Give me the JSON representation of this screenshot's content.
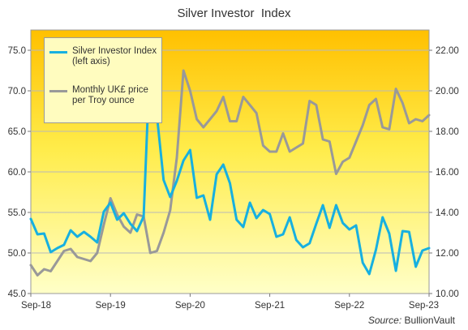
{
  "chart_data": {
    "type": "line",
    "title": "Silver Investor  Index",
    "source_label": "Source:",
    "source_value": "BullionVault",
    "left_axis": {
      "range": [
        45,
        77.5
      ],
      "ticks": [
        "45.0",
        "50.0",
        "55.0",
        "60.0",
        "65.0",
        "70.0",
        "75.0"
      ]
    },
    "right_axis": {
      "range": [
        10,
        23
      ],
      "ticks": [
        "10.00",
        "12.00",
        "14.00",
        "16.00",
        "18.00",
        "20.00",
        "22.00"
      ]
    },
    "x_tick_labels": [
      "Sep-18",
      "Sep-19",
      "Sep-20",
      "Sep-21",
      "Sep-22",
      "Sep-23"
    ],
    "x_range": [
      "Sep-18",
      "Sep-23"
    ],
    "grid": "horizontal",
    "legend_position": "top-left",
    "background": {
      "top": "#ffc000",
      "bottom": "#ffffc8"
    },
    "series": [
      {
        "name": "Silver Investor Index (left axis)",
        "axis": "left",
        "color": "#17b0e0",
        "values": [
          54.2,
          52.3,
          52.4,
          50.1,
          50.6,
          51.0,
          52.8,
          52.0,
          52.6,
          52.0,
          51.3,
          55.1,
          56.2,
          54.1,
          54.9,
          53.6,
          52.7,
          54.5,
          75.0,
          66.9,
          59.0,
          56.9,
          58.9,
          61.4,
          62.7,
          56.8,
          57.1,
          54.1,
          59.7,
          60.9,
          58.6,
          54.1,
          53.2,
          56.2,
          54.3,
          55.3,
          54.8,
          52.0,
          52.3,
          54.4,
          51.6,
          50.7,
          51.2,
          53.6,
          55.9,
          53.1,
          55.9,
          53.7,
          52.9,
          53.4,
          48.8,
          47.4,
          50.4,
          54.4,
          52.4,
          47.8,
          52.7,
          52.6,
          48.3,
          50.3,
          50.6
        ]
      },
      {
        "name": "Monthly UK£ price per Troy ounce",
        "axis": "right",
        "color": "#999999",
        "values": [
          11.4,
          10.9,
          11.2,
          11.1,
          11.6,
          12.1,
          12.2,
          11.8,
          11.7,
          11.6,
          12.0,
          13.4,
          14.7,
          13.9,
          13.3,
          13.0,
          13.9,
          13.8,
          12.0,
          12.1,
          13.0,
          14.1,
          16.7,
          21.0,
          20.0,
          18.6,
          18.2,
          18.6,
          19.0,
          19.7,
          18.5,
          18.5,
          19.7,
          19.3,
          18.9,
          17.3,
          17.0,
          17.0,
          17.9,
          17.0,
          17.2,
          17.4,
          19.5,
          19.3,
          17.6,
          17.5,
          15.9,
          16.5,
          16.7,
          17.5,
          18.3,
          19.3,
          19.6,
          18.2,
          18.1,
          20.1,
          19.4,
          18.4,
          18.6,
          18.5,
          18.8
        ]
      }
    ]
  }
}
